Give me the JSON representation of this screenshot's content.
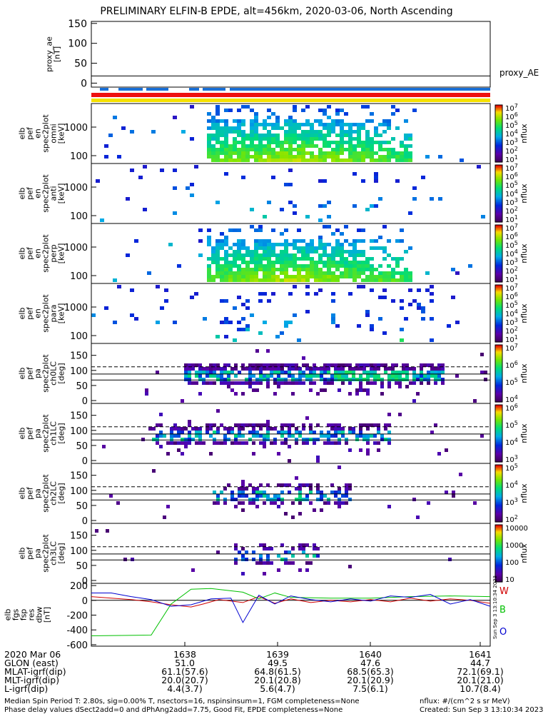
{
  "title": "PRELIMINARY ELFIN-B EPDE, alt=456km, 2020-03-06, North Ascending",
  "chart_data": [
    {
      "type": "line",
      "ylabel": "proxy_ae\n[nT]",
      "legend": "proxy_AE",
      "yticks": [
        "150",
        "100",
        "50",
        "0"
      ],
      "ylim": [
        -10,
        155
      ],
      "value": 18
    },
    {
      "type": "heatmap",
      "ylabel": "elb\npef\nen\nspec2plot\nomni\n[keV]",
      "yticks": [
        "1000",
        "100"
      ],
      "colorbar": {
        "label": "nflux",
        "ticks": [
          "10^7",
          "10^6",
          "10^5",
          "10^4",
          "10^3",
          "10^2",
          "10^1"
        ]
      }
    },
    {
      "type": "heatmap",
      "ylabel": "elb\npef\nen\nspec2plot\nanti\n[keV]",
      "yticks": [
        "1000",
        "100"
      ],
      "colorbar": {
        "label": "nflux",
        "ticks": [
          "10^7",
          "10^6",
          "10^5",
          "10^4",
          "10^3",
          "10^2",
          "10^1"
        ]
      }
    },
    {
      "type": "heatmap",
      "ylabel": "elb\npef\nen\nspec2plot\nperp\n[keV]",
      "yticks": [
        "1000",
        "100"
      ],
      "colorbar": {
        "label": "nflux",
        "ticks": [
          "10^7",
          "10^6",
          "10^5",
          "10^4",
          "10^3",
          "10^2",
          "10^1"
        ]
      }
    },
    {
      "type": "heatmap",
      "ylabel": "elb\npef\nen\nspec2plot\npara\n[keV]",
      "yticks": [
        "1000",
        "100"
      ],
      "colorbar": {
        "label": "nflux",
        "ticks": [
          "10^7",
          "10^6",
          "10^5",
          "10^4",
          "10^3",
          "10^2",
          "10^1"
        ]
      }
    },
    {
      "type": "heatmap",
      "ylabel": "elb\npef\npa\nspec2plot\nch0LC\n[deg]",
      "yticks": [
        "150",
        "100",
        "50",
        "0"
      ],
      "colorbar": {
        "label": "nflux",
        "ticks": [
          "10^7",
          "10^6",
          "10^5",
          "10^4"
        ]
      }
    },
    {
      "type": "heatmap",
      "ylabel": "elb\npef\npa\nspec2plot\nch1LC\n[deg]",
      "yticks": [
        "150",
        "100",
        "50",
        "0"
      ],
      "colorbar": {
        "label": "nflux",
        "ticks": [
          "10^6",
          "10^5",
          "10^4",
          "10^3"
        ]
      }
    },
    {
      "type": "heatmap",
      "ylabel": "elb\npef\npa\nspec2plot\nch2LC\n[deg]",
      "yticks": [
        "150",
        "100",
        "50",
        "0"
      ],
      "colorbar": {
        "label": "nflux",
        "ticks": [
          "10^5",
          "10^4",
          "10^3",
          "10^2"
        ]
      }
    },
    {
      "type": "heatmap",
      "ylabel": "elb\npef\npa\nspec2plot\nch3LC\n[deg]",
      "yticks": [
        "150",
        "100",
        "50",
        "0"
      ],
      "colorbar": {
        "label": "nflux",
        "ticks": [
          "10000",
          "1000",
          "100",
          "10"
        ]
      }
    },
    {
      "type": "line",
      "ylabel": "elb\nfgs\nfsp\nres\ndbw\n[nT]",
      "yticks": [
        "200",
        "0",
        "-200",
        "-400",
        "-600"
      ],
      "ylim": [
        -620,
        230
      ],
      "legend_labels": [
        "W",
        "B",
        "O"
      ],
      "series": [
        {
          "name": "W",
          "color": "#d00000",
          "x": [
            0,
            0.05,
            0.1,
            0.15,
            0.2,
            0.25,
            0.28,
            0.32,
            0.38,
            0.42,
            0.46,
            0.5,
            0.55,
            0.6,
            0.65,
            0.7,
            0.75,
            0.8,
            0.85,
            0.9,
            0.95,
            1.0
          ],
          "y": [
            50,
            30,
            10,
            -20,
            -60,
            -90,
            -50,
            10,
            -30,
            50,
            -40,
            20,
            -30,
            0,
            -20,
            10,
            -20,
            30,
            -10,
            20,
            0,
            -40
          ]
        },
        {
          "name": "B",
          "color": "#00c000",
          "x": [
            0,
            0.15,
            0.2,
            0.25,
            0.3,
            0.38,
            0.42,
            0.46,
            0.5,
            0.6,
            0.7,
            0.8,
            0.9,
            1.0
          ],
          "y": [
            -480,
            -470,
            -50,
            150,
            160,
            110,
            20,
            100,
            40,
            30,
            30,
            50,
            60,
            50
          ]
        },
        {
          "name": "O",
          "color": "#0000d0",
          "x": [
            0,
            0.05,
            0.1,
            0.15,
            0.2,
            0.25,
            0.3,
            0.35,
            0.38,
            0.42,
            0.46,
            0.5,
            0.55,
            0.6,
            0.65,
            0.7,
            0.75,
            0.8,
            0.85,
            0.9,
            0.95,
            1.0
          ],
          "y": [
            100,
            100,
            50,
            10,
            -80,
            -60,
            20,
            30,
            -300,
            70,
            -50,
            60,
            10,
            -20,
            20,
            -10,
            60,
            40,
            80,
            -50,
            10,
            -80
          ]
        }
      ]
    }
  ],
  "sidebar_stamp": "Sun Sep  3 13:10:34 2023",
  "x_ticks": [
    "1638",
    "1639",
    "1640",
    "1641"
  ],
  "ephemeris": [
    {
      "label": "2020 Mar 06",
      "values": [
        "",
        "",
        "",
        ""
      ]
    },
    {
      "label": "GLON (east)",
      "values": [
        "51.0",
        "49.5",
        "47.6",
        "44.7"
      ]
    },
    {
      "label": "MLAT-igrf(dip)",
      "values": [
        "61.1(57.6)",
        "64.8(61.5)",
        "68.5(65.3)",
        "72.1(69.1)"
      ]
    },
    {
      "label": "MLT-igrf(dip)",
      "values": [
        "20.0(20.7)",
        "20.1(20.8)",
        "20.1(20.9)",
        "20.1(21.0)"
      ]
    },
    {
      "label": "L-igrf(dip)",
      "values": [
        "4.4(3.7)",
        "5.6(4.7)",
        "7.5(6.1)",
        "10.7(8.4)"
      ]
    }
  ],
  "footer": {
    "line1_left": "Median Spin Period T: 2.80s, sig=0.00% T, nsectors=16, nspinsinsum=1, FGM completeness=None",
    "line2_left": "Phase delay values dSect2add=0 and dPhAng2add=7.75, Good Fit, EPDE completeness=None",
    "line1_right": "nflux: #/(cm^2 s sr MeV)",
    "line2_right": "Created: Sun Sep  3 13:10:34 2023"
  }
}
